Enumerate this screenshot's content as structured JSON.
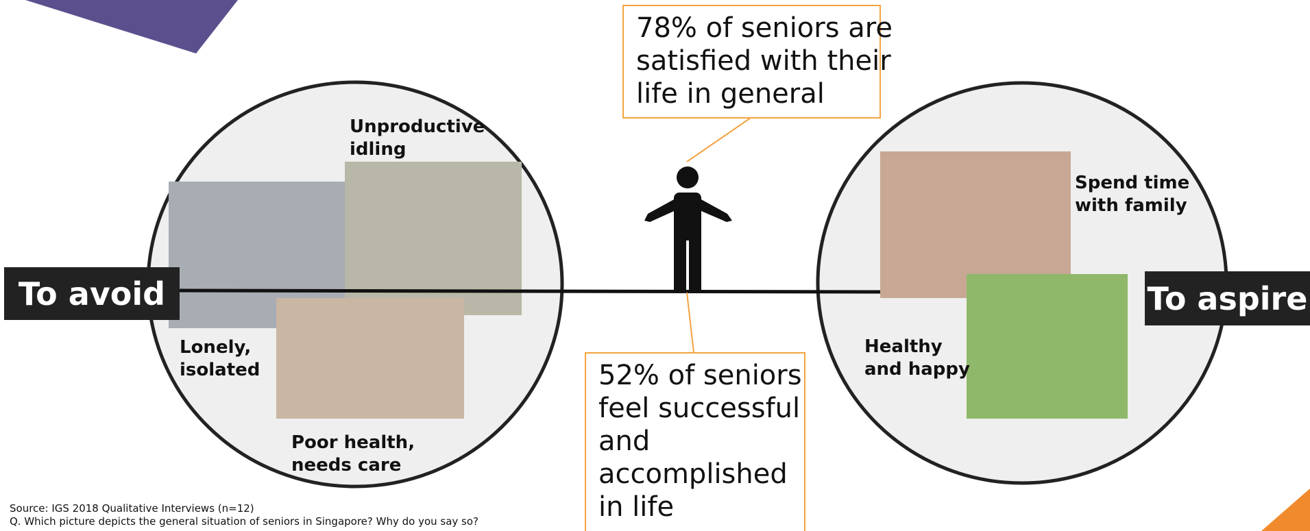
{
  "sides": {
    "avoid": "To avoid",
    "aspire": "To aspire"
  },
  "avoid_labels": [
    [
      "Unproductive",
      "idling"
    ],
    [
      "Lonely,",
      "isolated"
    ],
    [
      "Poor health,",
      "needs care"
    ]
  ],
  "aspire_labels": [
    [
      "Spend time",
      "with family"
    ],
    [
      "Healthy",
      "and happy"
    ]
  ],
  "stats": {
    "top": [
      "78% of seniors are",
      "satisfied with their",
      "life in general"
    ],
    "bottom": [
      "52% of seniors",
      "feel successful",
      "and",
      "accomplished",
      "in life"
    ]
  },
  "footer": {
    "source": "Source: IGS 2018 Qualitative Interviews (n=12)",
    "question": "Q. Which picture depicts the general situation of seniors in Singapore? Why do you say so?"
  }
}
